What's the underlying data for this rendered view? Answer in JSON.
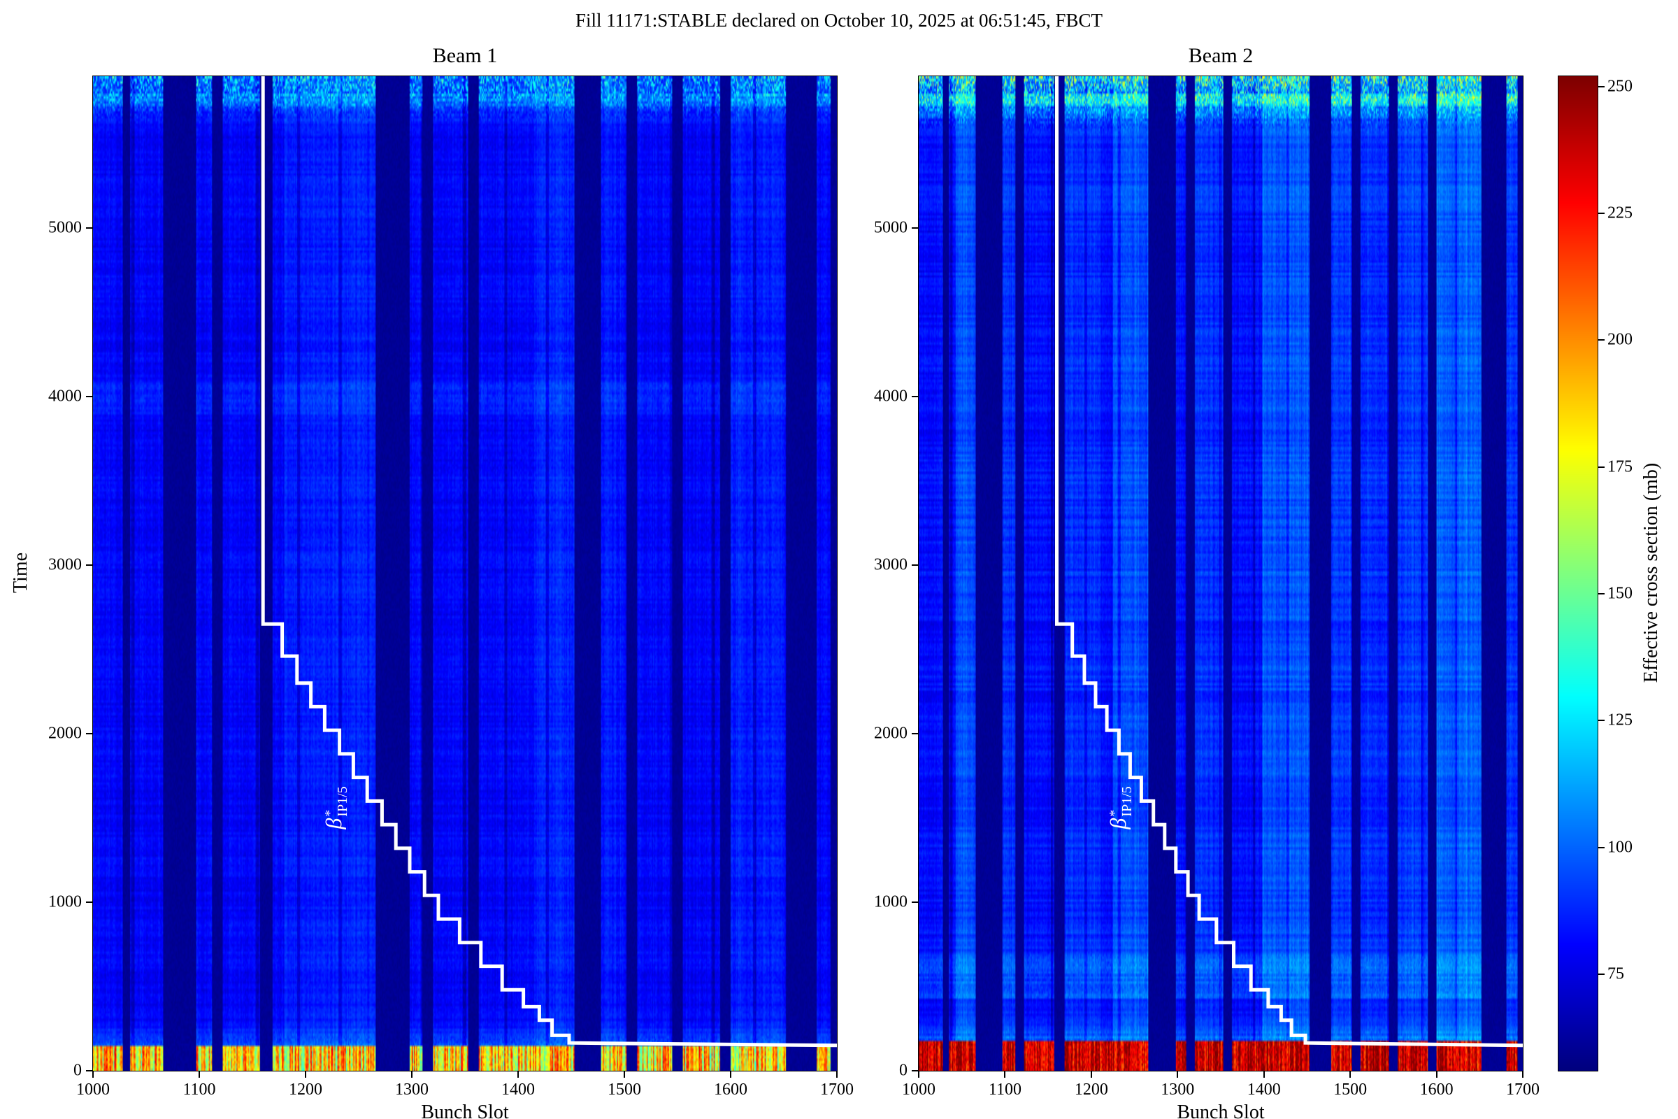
{
  "figure": {
    "title": "Fill 11171:STABLE declared on October 10, 2025 at 06:51:45, FBCT"
  },
  "chart_data": {
    "type": "heatmap",
    "panels": [
      {
        "title": "Beam 1",
        "xlabel": "Bunch Slot",
        "ylabel": "Time",
        "xlim": [
          1000,
          1700
        ],
        "ylim": [
          0,
          5900
        ],
        "xticks": [
          1000,
          1100,
          1200,
          1300,
          1400,
          1500,
          1600,
          1700
        ],
        "yticks": [
          0,
          1000,
          2000,
          3000,
          4000,
          5000
        ],
        "seed": 11171,
        "base_value": 80,
        "row_noise": 3,
        "streaks": [
          [
            1180,
            1265,
            6
          ],
          [
            1415,
            1452,
            7
          ],
          [
            1478,
            1500,
            4
          ],
          [
            1596,
            1650,
            5
          ]
        ],
        "bottom_band": {
          "t_max": 150,
          "value_min": 145,
          "value_max": 225
        },
        "warm_band": {
          "t_min": 3900,
          "t_max": 4080,
          "boost": 6
        },
        "top_band": {
          "t_min": 5600,
          "boost": 32
        },
        "beta_label_pos": [
          1228,
          1560
        ]
      },
      {
        "title": "Beam 2",
        "xlabel": "Bunch Slot",
        "ylabel": "",
        "xlim": [
          1000,
          1700
        ],
        "ylim": [
          0,
          5900
        ],
        "xticks": [
          1000,
          1100,
          1200,
          1300,
          1400,
          1500,
          1600,
          1700
        ],
        "yticks": [
          0,
          1000,
          2000,
          3000,
          4000,
          5000
        ],
        "seed": 22342,
        "base_value": 82,
        "row_noise": 5,
        "streaks": [
          [
            1043,
            1066,
            13
          ],
          [
            1097,
            1112,
            7
          ],
          [
            1170,
            1210,
            7
          ],
          [
            1225,
            1265,
            13
          ],
          [
            1320,
            1352,
            7
          ],
          [
            1398,
            1452,
            15
          ],
          [
            1477,
            1500,
            9
          ],
          [
            1512,
            1545,
            6
          ],
          [
            1554,
            1590,
            9
          ],
          [
            1600,
            1652,
            17
          ],
          [
            1680,
            1694,
            8
          ]
        ],
        "bottom_band": {
          "t_max": 170,
          "value_min": 215,
          "value_max": 258
        },
        "warm_band": {
          "t_min": 430,
          "t_max": 700,
          "boost": 11
        },
        "top_band": {
          "t_min": 5550,
          "boost": 46
        },
        "beta_label_pos": [
          1233,
          1560
        ]
      }
    ],
    "gap_bands": [
      [
        1028,
        1034
      ],
      [
        1066,
        1096
      ],
      [
        1112,
        1121
      ],
      [
        1157,
        1168
      ],
      [
        1266,
        1297
      ],
      [
        1310,
        1319
      ],
      [
        1353,
        1362
      ],
      [
        1453,
        1477
      ],
      [
        1502,
        1511
      ],
      [
        1545,
        1554
      ],
      [
        1590,
        1599
      ],
      [
        1652,
        1680
      ],
      [
        1694,
        1700
      ]
    ],
    "colorbar": {
      "label": "Effective cross section (mb)",
      "ticks": [
        75,
        100,
        125,
        150,
        175,
        200,
        225,
        250
      ],
      "vmin": 56,
      "vmax": 252,
      "colormap": "jet"
    },
    "step_line": {
      "label": {
        "base": "β",
        "sup": "*",
        "sub": "IP1/5"
      },
      "points": [
        [
          1160,
          5900
        ],
        [
          1160,
          2650
        ],
        [
          1178,
          2650
        ],
        [
          1178,
          2460
        ],
        [
          1192,
          2460
        ],
        [
          1192,
          2300
        ],
        [
          1205,
          2300
        ],
        [
          1205,
          2160
        ],
        [
          1218,
          2160
        ],
        [
          1218,
          2020
        ],
        [
          1232,
          2020
        ],
        [
          1232,
          1880
        ],
        [
          1245,
          1880
        ],
        [
          1245,
          1740
        ],
        [
          1258,
          1740
        ],
        [
          1258,
          1600
        ],
        [
          1272,
          1600
        ],
        [
          1272,
          1460
        ],
        [
          1285,
          1460
        ],
        [
          1285,
          1320
        ],
        [
          1298,
          1320
        ],
        [
          1298,
          1180
        ],
        [
          1312,
          1180
        ],
        [
          1312,
          1040
        ],
        [
          1325,
          1040
        ],
        [
          1325,
          900
        ],
        [
          1345,
          900
        ],
        [
          1345,
          760
        ],
        [
          1365,
          760
        ],
        [
          1365,
          620
        ],
        [
          1385,
          620
        ],
        [
          1385,
          480
        ],
        [
          1405,
          480
        ],
        [
          1405,
          380
        ],
        [
          1420,
          380
        ],
        [
          1420,
          300
        ],
        [
          1432,
          300
        ],
        [
          1432,
          210
        ],
        [
          1448,
          210
        ],
        [
          1448,
          165
        ],
        [
          1700,
          150
        ]
      ]
    }
  }
}
